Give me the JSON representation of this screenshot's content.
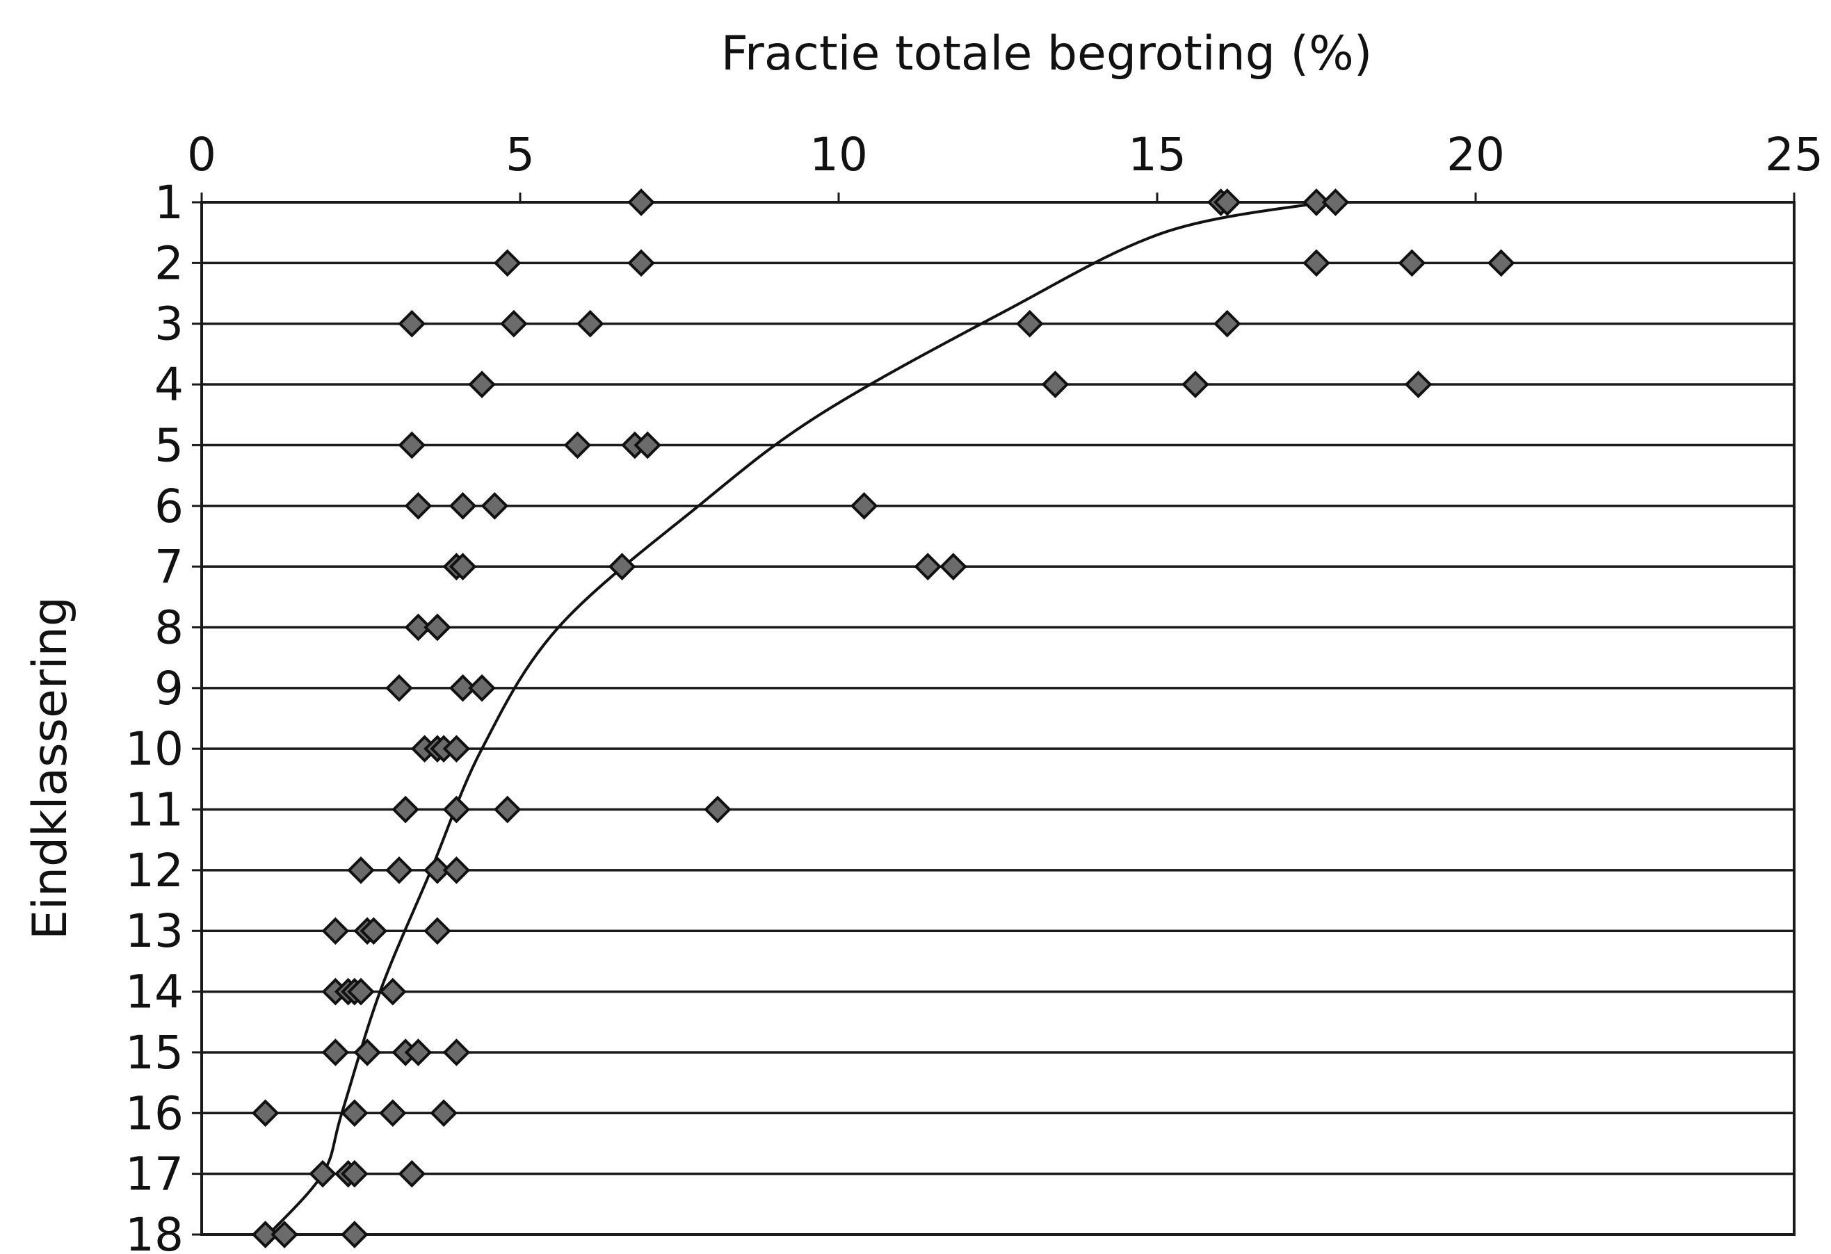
{
  "chart_data": {
    "type": "scatter",
    "title": "",
    "xlabel": "Fractie totale begroting (%)",
    "ylabel": "Eindklassering",
    "xlim": [
      0,
      25
    ],
    "ylim": [
      1,
      18
    ],
    "y_inverted": true,
    "x_axis_position": "top",
    "x_ticks": [
      "0",
      "5",
      "10",
      "15",
      "20",
      "25"
    ],
    "y_ticks": [
      "1",
      "2",
      "3",
      "4",
      "5",
      "6",
      "7",
      "8",
      "9",
      "10",
      "11",
      "12",
      "13",
      "14",
      "15",
      "16",
      "17",
      "18"
    ],
    "grid": "horizontal lines at each y tick",
    "series": [
      {
        "marker": "diamond",
        "points": [
          [
            6.9,
            1
          ],
          [
            16.0,
            1
          ],
          [
            16.1,
            1
          ],
          [
            17.5,
            1
          ],
          [
            17.8,
            1
          ],
          [
            4.8,
            2
          ],
          [
            6.9,
            2
          ],
          [
            17.5,
            2
          ],
          [
            19.0,
            2
          ],
          [
            20.4,
            2
          ],
          [
            3.3,
            3
          ],
          [
            4.9,
            3
          ],
          [
            6.1,
            3
          ],
          [
            13.0,
            3
          ],
          [
            16.1,
            3
          ],
          [
            4.4,
            4
          ],
          [
            13.4,
            4
          ],
          [
            15.6,
            4
          ],
          [
            19.1,
            4
          ],
          [
            3.3,
            5
          ],
          [
            5.9,
            5
          ],
          [
            6.8,
            5
          ],
          [
            7.0,
            5
          ],
          [
            3.4,
            6
          ],
          [
            4.1,
            6
          ],
          [
            4.6,
            6
          ],
          [
            10.4,
            6
          ],
          [
            4.0,
            7
          ],
          [
            4.1,
            7
          ],
          [
            6.6,
            7
          ],
          [
            11.4,
            7
          ],
          [
            11.8,
            7
          ],
          [
            3.4,
            8
          ],
          [
            3.7,
            8
          ],
          [
            3.1,
            9
          ],
          [
            4.1,
            9
          ],
          [
            4.4,
            9
          ],
          [
            3.5,
            10
          ],
          [
            3.7,
            10
          ],
          [
            3.8,
            10
          ],
          [
            4.0,
            10
          ],
          [
            3.2,
            11
          ],
          [
            4.0,
            11
          ],
          [
            4.8,
            11
          ],
          [
            8.1,
            11
          ],
          [
            2.5,
            12
          ],
          [
            3.1,
            12
          ],
          [
            3.7,
            12
          ],
          [
            4.0,
            12
          ],
          [
            2.1,
            13
          ],
          [
            2.6,
            13
          ],
          [
            2.7,
            13
          ],
          [
            3.7,
            13
          ],
          [
            2.1,
            14
          ],
          [
            2.3,
            14
          ],
          [
            2.4,
            14
          ],
          [
            2.5,
            14
          ],
          [
            3.0,
            14
          ],
          [
            2.1,
            15
          ],
          [
            2.6,
            15
          ],
          [
            3.2,
            15
          ],
          [
            3.4,
            15
          ],
          [
            4.0,
            15
          ],
          [
            1.0,
            16
          ],
          [
            2.4,
            16
          ],
          [
            3.0,
            16
          ],
          [
            3.8,
            16
          ],
          [
            1.9,
            17
          ],
          [
            2.3,
            17
          ],
          [
            2.4,
            17
          ],
          [
            3.3,
            17
          ],
          [
            1.0,
            18
          ],
          [
            1.3,
            18
          ],
          [
            2.4,
            18
          ]
        ]
      }
    ],
    "trendline": {
      "type": "power",
      "points": [
        [
          17.6,
          1
        ],
        [
          15.1,
          1.5
        ],
        [
          12.6,
          2.8
        ],
        [
          9.7,
          4.5
        ],
        [
          7.8,
          6
        ],
        [
          5.6,
          8
        ],
        [
          4.4,
          10
        ],
        [
          3.6,
          12
        ],
        [
          2.8,
          14
        ],
        [
          2.2,
          16
        ],
        [
          1.9,
          17
        ],
        [
          1.05,
          18
        ]
      ]
    }
  }
}
